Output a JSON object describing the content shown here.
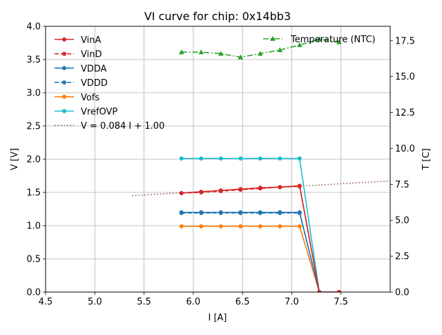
{
  "chart_data": {
    "type": "line",
    "title": "VI curve for chip: 0x14bb3",
    "xlabel": "I [A]",
    "ylabel": "V [V]",
    "y2label": "T [C]",
    "xlim": [
      4.5,
      8.0
    ],
    "ylim": [
      0.0,
      4.0
    ],
    "y2lim": [
      0.0,
      18.5
    ],
    "xticks": [
      4.5,
      5.0,
      5.5,
      6.0,
      6.5,
      7.0,
      7.5
    ],
    "xtick_labels": [
      "4.5",
      "5.0",
      "5.5",
      "6.0",
      "6.5",
      "7.0",
      "7.5"
    ],
    "yticks": [
      0.0,
      0.5,
      1.0,
      1.5,
      2.0,
      2.5,
      3.0,
      3.5,
      4.0
    ],
    "ytick_labels": [
      "0.0",
      "0.5",
      "1.0",
      "1.5",
      "2.0",
      "2.5",
      "3.0",
      "3.5",
      "4.0"
    ],
    "y2ticks": [
      0.0,
      2.5,
      5.0,
      7.5,
      10.0,
      12.5,
      15.0,
      17.5
    ],
    "y2tick_labels": [
      "0.0",
      "2.5",
      "5.0",
      "7.5",
      "10.0",
      "12.5",
      "15.0",
      "17.5"
    ],
    "grid": true,
    "x": [
      5.88,
      6.08,
      6.28,
      6.48,
      6.68,
      6.88,
      7.08,
      7.28,
      7.48
    ],
    "series": [
      {
        "name": "VinA",
        "color": "#d62728",
        "dash": "solid",
        "axis": "left",
        "values": [
          1.49,
          1.51,
          1.53,
          1.55,
          1.57,
          1.58,
          1.6,
          0.0,
          0.0
        ]
      },
      {
        "name": "VinD",
        "color": "#d62728",
        "dash": "dashed",
        "axis": "left",
        "values": [
          1.49,
          1.5,
          1.52,
          1.54,
          1.56,
          1.58,
          1.59,
          0.0,
          0.0
        ]
      },
      {
        "name": "VDDA",
        "color": "#1f77b4",
        "dash": "solid",
        "axis": "left",
        "values": [
          1.2,
          1.2,
          1.2,
          1.2,
          1.2,
          1.2,
          1.2,
          0.0,
          0.0
        ]
      },
      {
        "name": "VDDD",
        "color": "#1f77b4",
        "dash": "dashed",
        "axis": "left",
        "values": [
          1.19,
          1.19,
          1.19,
          1.19,
          1.19,
          1.19,
          1.19,
          0.0,
          0.0
        ]
      },
      {
        "name": "Vofs",
        "color": "#ff7f0e",
        "dash": "solid",
        "axis": "left",
        "values": [
          0.99,
          0.99,
          0.99,
          0.99,
          0.99,
          0.99,
          0.99,
          0.0,
          0.0
        ]
      },
      {
        "name": "VrefOVP",
        "color": "#17becf",
        "dash": "solid",
        "axis": "left",
        "values": [
          2.01,
          2.01,
          2.01,
          2.01,
          2.01,
          2.01,
          2.01,
          0.0,
          0.0
        ]
      }
    ],
    "fit": {
      "name": "V = 0.084 I + 1.00",
      "color": "#8c564b",
      "slope": 0.084,
      "intercept": 1.0,
      "x_range": [
        5.38,
        8.0
      ]
    },
    "temperature": {
      "name": "Temperature (NTC)",
      "color": "#2ca02c",
      "axis": "right",
      "x": [
        5.88,
        6.08,
        6.28,
        6.48,
        6.68,
        6.88,
        7.08,
        7.28,
        7.48
      ],
      "values": [
        16.7,
        16.7,
        16.6,
        16.35,
        16.6,
        16.85,
        17.2,
        17.6,
        17.4
      ]
    },
    "legend_left": "upper-left",
    "legend_right": "upper-right"
  }
}
